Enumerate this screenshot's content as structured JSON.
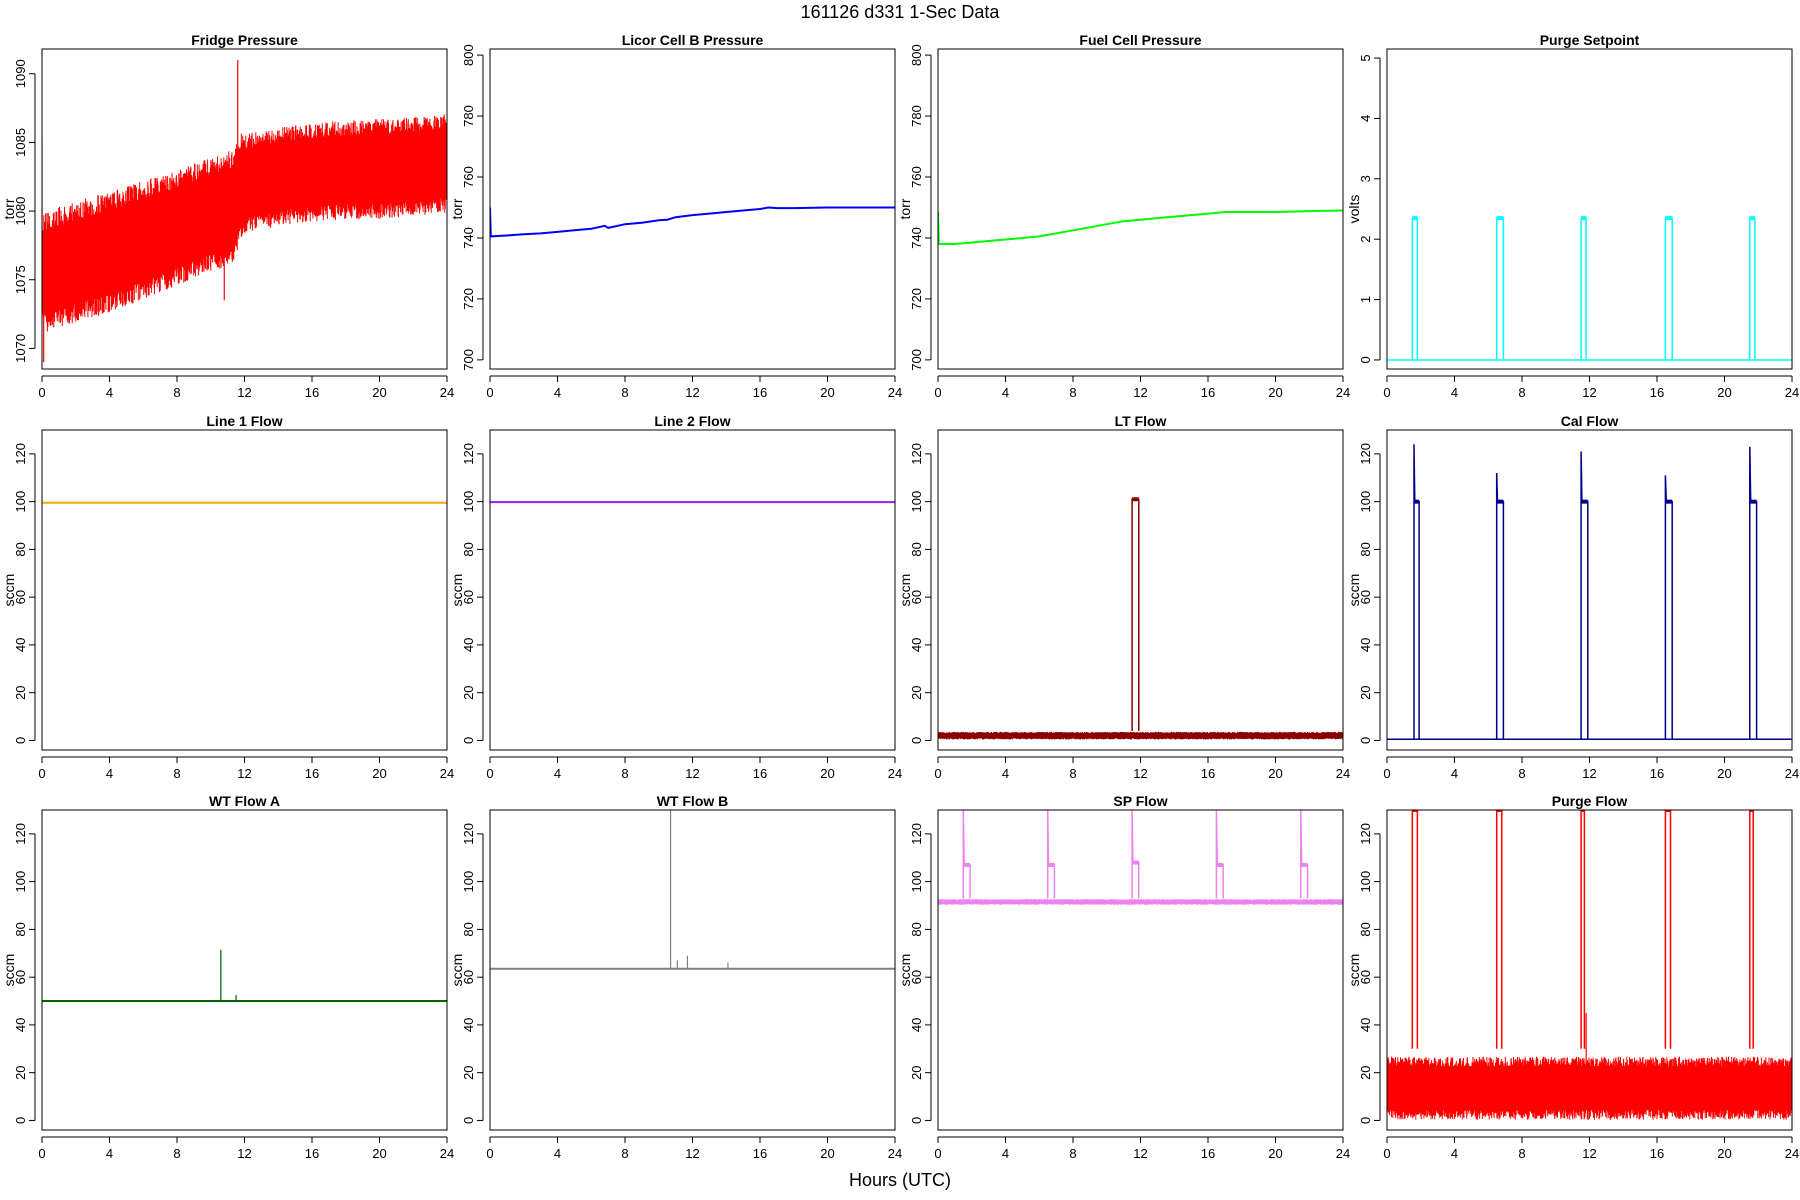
{
  "title": "161126   d331   1-Sec Data",
  "xlabel": "Hours (UTC)",
  "chart_data": [
    {
      "type": "line",
      "title": "Fridge Pressure",
      "ylabel": "torr",
      "color": "#ff0000",
      "xlim": [
        0,
        24
      ],
      "ylim": [
        1068.5,
        1091.8
      ],
      "xticks": [
        0,
        4,
        8,
        12,
        16,
        20,
        24
      ],
      "yticks": [
        1070,
        1075,
        1080,
        1085,
        1090
      ],
      "band": {
        "x": [
          0,
          2,
          4,
          6,
          8,
          10,
          11.4,
          11.8,
          12,
          14,
          16,
          18,
          20,
          22,
          24
        ],
        "lower": [
          1070,
          1070.8,
          1071.5,
          1072.5,
          1073.5,
          1074.5,
          1075.2,
          1077,
          1077.5,
          1078,
          1078.3,
          1078.5,
          1078.5,
          1078.7,
          1079
        ],
        "upper": [
          1081,
          1081.8,
          1082.5,
          1083.3,
          1084,
          1085,
          1085.5,
          1087,
          1086.5,
          1087,
          1087.3,
          1087.5,
          1087.6,
          1087.8,
          1088
        ]
      },
      "spikes": [
        {
          "x": 0,
          "y": 1085
        },
        {
          "x": 0.1,
          "y": 1069
        },
        {
          "x": 11.6,
          "y": 1091
        },
        {
          "x": 10.8,
          "y": 1073.5
        }
      ]
    },
    {
      "type": "line",
      "title": "Licor Cell B Pressure",
      "ylabel": "torr",
      "color": "#0000ff",
      "xlim": [
        0,
        24
      ],
      "ylim": [
        697,
        802
      ],
      "xticks": [
        0,
        4,
        8,
        12,
        16,
        20,
        24
      ],
      "yticks": [
        700,
        720,
        740,
        760,
        780,
        800
      ],
      "x": [
        0,
        0.05,
        1,
        2,
        3,
        4,
        5,
        6,
        6.8,
        7,
        8,
        9,
        10,
        10.5,
        11,
        12,
        13,
        14,
        15,
        16,
        16.5,
        17,
        18,
        20,
        22,
        24
      ],
      "y": [
        750,
        740.5,
        740.8,
        741.2,
        741.5,
        742,
        742.5,
        743,
        744,
        743.3,
        744.5,
        745,
        745.8,
        746,
        746.8,
        747.5,
        748,
        748.5,
        749,
        749.5,
        750,
        749.8,
        749.8,
        750,
        750,
        750
      ]
    },
    {
      "type": "line",
      "title": "Fuel Cell Pressure",
      "ylabel": "torr",
      "color": "#00ff00",
      "xlim": [
        0,
        24
      ],
      "ylim": [
        697,
        802
      ],
      "xticks": [
        0,
        4,
        8,
        12,
        16,
        20,
        24
      ],
      "yticks": [
        700,
        720,
        740,
        760,
        780,
        800
      ],
      "x": [
        0,
        0.05,
        1,
        2,
        3,
        4,
        5,
        6,
        7,
        8,
        9,
        10,
        11,
        12,
        13,
        14,
        15,
        16,
        17,
        18,
        20,
        22,
        24
      ],
      "y": [
        748.5,
        738,
        738,
        738.5,
        739,
        739.5,
        740,
        740.5,
        741.5,
        742.5,
        743.5,
        744.5,
        745.5,
        746,
        746.5,
        747,
        747.5,
        748,
        748.5,
        748.5,
        748.5,
        748.8,
        749
      ]
    },
    {
      "type": "line",
      "title": "Purge Setpoint",
      "ylabel": "volts",
      "color": "#00ffff",
      "xlim": [
        0,
        24
      ],
      "ylim": [
        -0.15,
        5.15
      ],
      "xticks": [
        0,
        4,
        8,
        12,
        16,
        20,
        24
      ],
      "yticks": [
        0,
        1,
        2,
        3,
        4,
        5
      ],
      "baseline": 0,
      "pulses": [
        {
          "start": 1.5,
          "end": 1.8,
          "level": 2.35
        },
        {
          "start": 6.5,
          "end": 6.9,
          "level": 2.35
        },
        {
          "start": 11.5,
          "end": 11.8,
          "level": 2.35
        },
        {
          "start": 16.5,
          "end": 16.9,
          "level": 2.35
        },
        {
          "start": 21.5,
          "end": 21.8,
          "level": 2.35
        }
      ]
    },
    {
      "type": "line",
      "title": "Line 1 Flow",
      "ylabel": "sccm",
      "color": "#ffa500",
      "xlim": [
        0,
        24
      ],
      "ylim": [
        -4,
        130
      ],
      "xticks": [
        0,
        4,
        8,
        12,
        16,
        20,
        24
      ],
      "yticks": [
        0,
        20,
        40,
        60,
        80,
        100,
        120
      ],
      "x": [
        0,
        24
      ],
      "y": [
        99.5,
        99.5
      ]
    },
    {
      "type": "line",
      "title": "Line 2 Flow",
      "ylabel": "sccm",
      "color": "#a020f0",
      "xlim": [
        0,
        24
      ],
      "ylim": [
        -4,
        130
      ],
      "xticks": [
        0,
        4,
        8,
        12,
        16,
        20,
        24
      ],
      "yticks": [
        0,
        20,
        40,
        60,
        80,
        100,
        120
      ],
      "x": [
        0,
        24
      ],
      "y": [
        99.8,
        99.8
      ]
    },
    {
      "type": "line",
      "title": "LT Flow",
      "ylabel": "sccm",
      "color": "#8b0000",
      "xlim": [
        0,
        24
      ],
      "ylim": [
        -4,
        130
      ],
      "xticks": [
        0,
        4,
        8,
        12,
        16,
        20,
        24
      ],
      "yticks": [
        0,
        20,
        40,
        60,
        80,
        100,
        120
      ],
      "band": {
        "x": [
          0,
          24
        ],
        "lower": [
          0,
          0
        ],
        "upper": [
          4,
          4
        ]
      },
      "pulses": [
        {
          "start": 11.5,
          "end": 11.9,
          "level": 101
        }
      ]
    },
    {
      "type": "line",
      "title": "Cal Flow",
      "ylabel": "sccm",
      "color": "#00008b",
      "xlim": [
        0,
        24
      ],
      "ylim": [
        -4,
        130
      ],
      "xticks": [
        0,
        4,
        8,
        12,
        16,
        20,
        24
      ],
      "yticks": [
        0,
        20,
        40,
        60,
        80,
        100,
        120
      ],
      "baseline": 0.5,
      "pulses": [
        {
          "start": 1.6,
          "end": 1.9,
          "level": 100,
          "peak": 124
        },
        {
          "start": 6.5,
          "end": 6.9,
          "level": 100,
          "peak": 112
        },
        {
          "start": 11.5,
          "end": 11.9,
          "level": 100,
          "peak": 121
        },
        {
          "start": 16.5,
          "end": 16.9,
          "level": 100,
          "peak": 111
        },
        {
          "start": 21.5,
          "end": 21.9,
          "level": 100,
          "peak": 123
        }
      ]
    },
    {
      "type": "line",
      "title": "WT Flow A",
      "ylabel": "sccm",
      "color": "#006400",
      "xlim": [
        0,
        24
      ],
      "ylim": [
        -4,
        130
      ],
      "xticks": [
        0,
        4,
        8,
        12,
        16,
        20,
        24
      ],
      "yticks": [
        0,
        20,
        40,
        60,
        80,
        100,
        120
      ],
      "x": [
        0,
        24
      ],
      "y": [
        50,
        50
      ],
      "spikes": [
        {
          "x": 10.6,
          "y": 71.5
        },
        {
          "x": 11.5,
          "y": 52.5
        }
      ]
    },
    {
      "type": "line",
      "title": "WT Flow B",
      "ylabel": "sccm",
      "color": "#808080",
      "xlim": [
        0,
        24
      ],
      "ylim": [
        -4,
        130
      ],
      "xticks": [
        0,
        4,
        8,
        12,
        16,
        20,
        24
      ],
      "yticks": [
        0,
        20,
        40,
        60,
        80,
        100,
        120
      ],
      "x": [
        0,
        24
      ],
      "y": [
        63.5,
        63.5
      ],
      "spikes": [
        {
          "x": 10.7,
          "y": 130
        },
        {
          "x": 11.1,
          "y": 67
        },
        {
          "x": 11.7,
          "y": 69
        },
        {
          "x": 14.1,
          "y": 66
        }
      ]
    },
    {
      "type": "line",
      "title": "SP Flow",
      "ylabel": "sccm",
      "color": "#ee82ee",
      "xlim": [
        0,
        24
      ],
      "ylim": [
        -4,
        130
      ],
      "xticks": [
        0,
        4,
        8,
        12,
        16,
        20,
        24
      ],
      "yticks": [
        0,
        20,
        40,
        60,
        80,
        100,
        120
      ],
      "band": {
        "x": [
          0,
          24
        ],
        "lower": [
          90,
          90
        ],
        "upper": [
          93,
          93
        ]
      },
      "pulses": [
        {
          "start": 1.5,
          "end": 1.9,
          "level": 107,
          "peak": 130
        },
        {
          "start": 6.5,
          "end": 6.9,
          "level": 107,
          "peak": 130
        },
        {
          "start": 11.5,
          "end": 11.9,
          "level": 108,
          "peak": 130
        },
        {
          "start": 16.5,
          "end": 16.9,
          "level": 107,
          "peak": 130
        },
        {
          "start": 21.5,
          "end": 21.9,
          "level": 107,
          "peak": 130
        }
      ]
    },
    {
      "type": "line",
      "title": "Purge Flow",
      "ylabel": "sccm",
      "color": "#ff0000",
      "xlim": [
        0,
        24
      ],
      "ylim": [
        -4,
        130
      ],
      "xticks": [
        0,
        4,
        8,
        12,
        16,
        20,
        24
      ],
      "yticks": [
        0,
        20,
        40,
        60,
        80,
        100,
        120
      ],
      "band": {
        "x": [
          0,
          24
        ],
        "lower": [
          -3,
          -3
        ],
        "upper": [
          30,
          30
        ]
      },
      "pulses": [
        {
          "start": 1.5,
          "end": 1.8,
          "level": 130
        },
        {
          "start": 6.5,
          "end": 6.8,
          "level": 130
        },
        {
          "start": 11.5,
          "end": 11.7,
          "level": 130
        },
        {
          "start": 16.5,
          "end": 16.8,
          "level": 130
        },
        {
          "start": 21.5,
          "end": 21.7,
          "level": 130
        }
      ],
      "spikes": [
        {
          "x": 11.8,
          "y": 45
        }
      ]
    }
  ]
}
